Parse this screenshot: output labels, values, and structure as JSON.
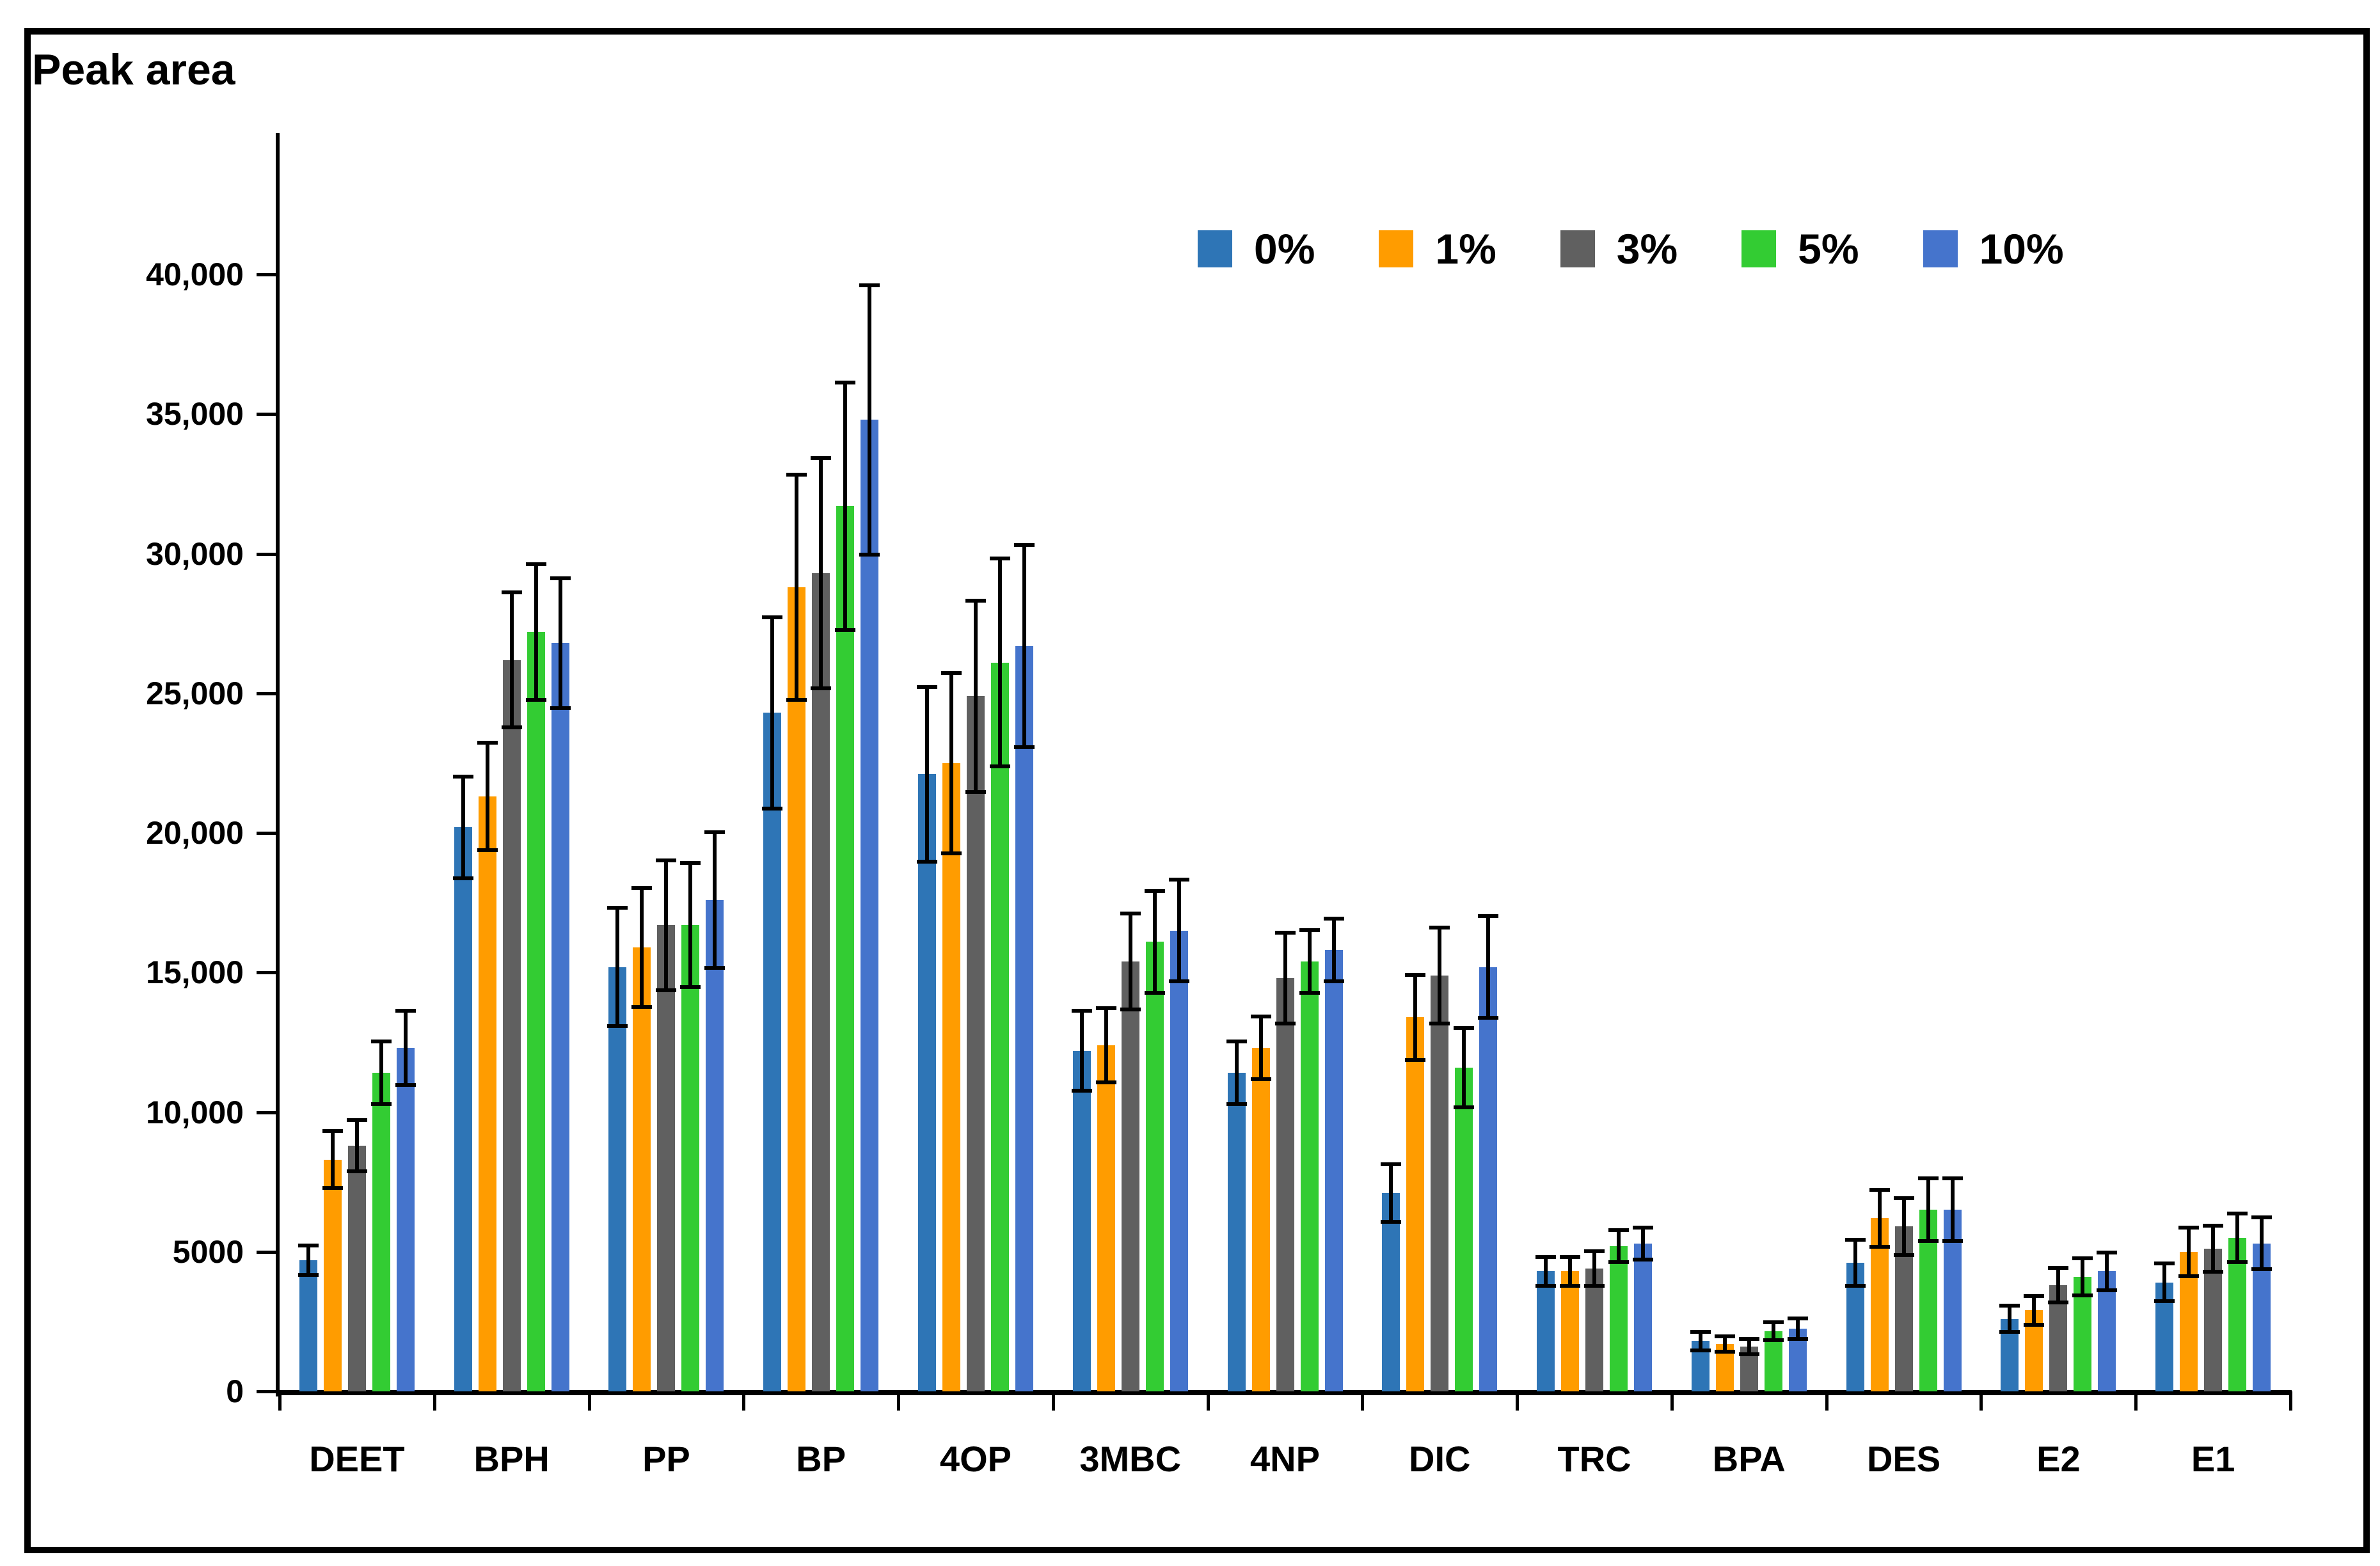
{
  "title": "Peak area",
  "chart_data": {
    "type": "bar",
    "title": "Peak area",
    "categories": [
      "DEET",
      "BPH",
      "PP",
      "BP",
      "4OP",
      "3MBC",
      "4NP",
      "DIC",
      "TRC",
      "BPA",
      "DES",
      "E2",
      "E1"
    ],
    "series": [
      {
        "name": "0%",
        "color": "#2E75B6",
        "values": [
          4700,
          20200,
          15200,
          24300,
          22100,
          12200,
          11400,
          7100,
          4300,
          1800,
          4600,
          2600,
          3900
        ],
        "errors": [
          500,
          1800,
          2100,
          3400,
          3100,
          1400,
          1100,
          1000,
          500,
          300,
          800,
          450,
          650
        ]
      },
      {
        "name": "1%",
        "color": "#FF9C00",
        "values": [
          8300,
          21300,
          15900,
          28800,
          22500,
          12400,
          12300,
          13400,
          4300,
          1700,
          6200,
          2900,
          5000
        ],
        "errors": [
          1000,
          1900,
          2100,
          4000,
          3200,
          1300,
          1100,
          1500,
          500,
          250,
          1000,
          500,
          850
        ]
      },
      {
        "name": "3%",
        "color": "#606060",
        "values": [
          8800,
          26200,
          16700,
          29300,
          24900,
          15400,
          14800,
          14900,
          4400,
          1600,
          5900,
          3800,
          5100
        ],
        "errors": [
          900,
          2400,
          2300,
          4100,
          3400,
          1700,
          1600,
          1700,
          600,
          250,
          1000,
          600,
          800
        ]
      },
      {
        "name": "5%",
        "color": "#33CC33",
        "values": [
          11400,
          27200,
          16700,
          31700,
          26100,
          16100,
          15400,
          11600,
          5200,
          2150,
          6500,
          4100,
          5500
        ],
        "errors": [
          1100,
          2400,
          2200,
          4400,
          3700,
          1800,
          1100,
          1400,
          550,
          300,
          1100,
          650,
          850
        ]
      },
      {
        "name": "10%",
        "color": "#4574CC",
        "values": [
          12300,
          26800,
          17600,
          34800,
          26700,
          16500,
          15800,
          15200,
          5300,
          2250,
          6500,
          4300,
          5300
        ],
        "errors": [
          1300,
          2300,
          2400,
          4800,
          3600,
          1800,
          1100,
          1800,
          550,
          350,
          1100,
          650,
          900
        ]
      }
    ],
    "ylabel": "Peak area",
    "xlabel": "",
    "ylim": [
      0,
      45000
    ],
    "ytick_step": 5000,
    "ytick_labels": [
      "0",
      "5000",
      "10,000",
      "15,000",
      "20,000",
      "25,000",
      "30,000",
      "35,000",
      "40,000"
    ],
    "grid": false,
    "legend_position": "top-right",
    "error_bars": true
  }
}
